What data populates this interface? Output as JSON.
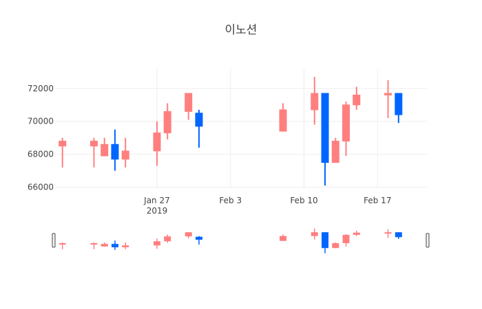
{
  "chart_data": {
    "type": "candlestick",
    "title": "이노션",
    "xlabel": "",
    "ylabel": "",
    "x_axis": {
      "range": [
        "2019-01-18",
        "2019-02-21"
      ],
      "ticks": [
        {
          "date": "2019-01-27",
          "label": "Jan 27",
          "sublabel": "2019"
        },
        {
          "date": "2019-02-03",
          "label": "Feb 3",
          "sublabel": ""
        },
        {
          "date": "2019-02-10",
          "label": "Feb 10",
          "sublabel": ""
        },
        {
          "date": "2019-02-17",
          "label": "Feb 17",
          "sublabel": ""
        }
      ]
    },
    "y_axis": {
      "range": [
        65900,
        73200
      ],
      "ticks": [
        66000,
        68000,
        70000,
        72000
      ],
      "tick_labels": [
        "66000",
        "68000",
        "70000",
        "72000"
      ]
    },
    "grid": true,
    "legend": "none",
    "range_slider": true,
    "colors": {
      "increasing": "#ff7f7f",
      "decreasing": "#0066ff",
      "grid": "#eeeeee",
      "slider_border": "#444444"
    },
    "candles": [
      {
        "date": "2019-01-18",
        "open": 68500,
        "high": 69000,
        "low": 67200,
        "close": 68800
      },
      {
        "date": "2019-01-21",
        "open": 68500,
        "high": 69000,
        "low": 67200,
        "close": 68800
      },
      {
        "date": "2019-01-22",
        "open": 67900,
        "high": 69000,
        "low": 67900,
        "close": 68600
      },
      {
        "date": "2019-01-23",
        "open": 68600,
        "high": 69500,
        "low": 67000,
        "close": 67700
      },
      {
        "date": "2019-01-24",
        "open": 67700,
        "high": 69000,
        "low": 67200,
        "close": 68200
      },
      {
        "date": "2019-01-27",
        "open": 68200,
        "high": 70000,
        "low": 67300,
        "close": 69300
      },
      {
        "date": "2019-01-28",
        "open": 69300,
        "high": 71100,
        "low": 68900,
        "close": 70600
      },
      {
        "date": "2019-01-30",
        "open": 70600,
        "high": 71700,
        "low": 70100,
        "close": 71700
      },
      {
        "date": "2019-01-31",
        "open": 70500,
        "high": 70700,
        "low": 68400,
        "close": 69700
      },
      {
        "date": "2019-02-08",
        "open": 69400,
        "high": 71100,
        "low": 69400,
        "close": 70700
      },
      {
        "date": "2019-02-11",
        "open": 70700,
        "high": 72700,
        "low": 69800,
        "close": 71700
      },
      {
        "date": "2019-02-12",
        "open": 71700,
        "high": 71700,
        "low": 66100,
        "close": 67500
      },
      {
        "date": "2019-02-13",
        "open": 67500,
        "high": 69000,
        "low": 67500,
        "close": 68800
      },
      {
        "date": "2019-02-14",
        "open": 68800,
        "high": 71200,
        "low": 67900,
        "close": 71000
      },
      {
        "date": "2019-02-15",
        "open": 71000,
        "high": 72100,
        "low": 70700,
        "close": 71600
      },
      {
        "date": "2019-02-18",
        "open": 71600,
        "high": 72500,
        "low": 70200,
        "close": 71700
      },
      {
        "date": "2019-02-19",
        "open": 71700,
        "high": 71700,
        "low": 69900,
        "close": 70400
      }
    ]
  }
}
